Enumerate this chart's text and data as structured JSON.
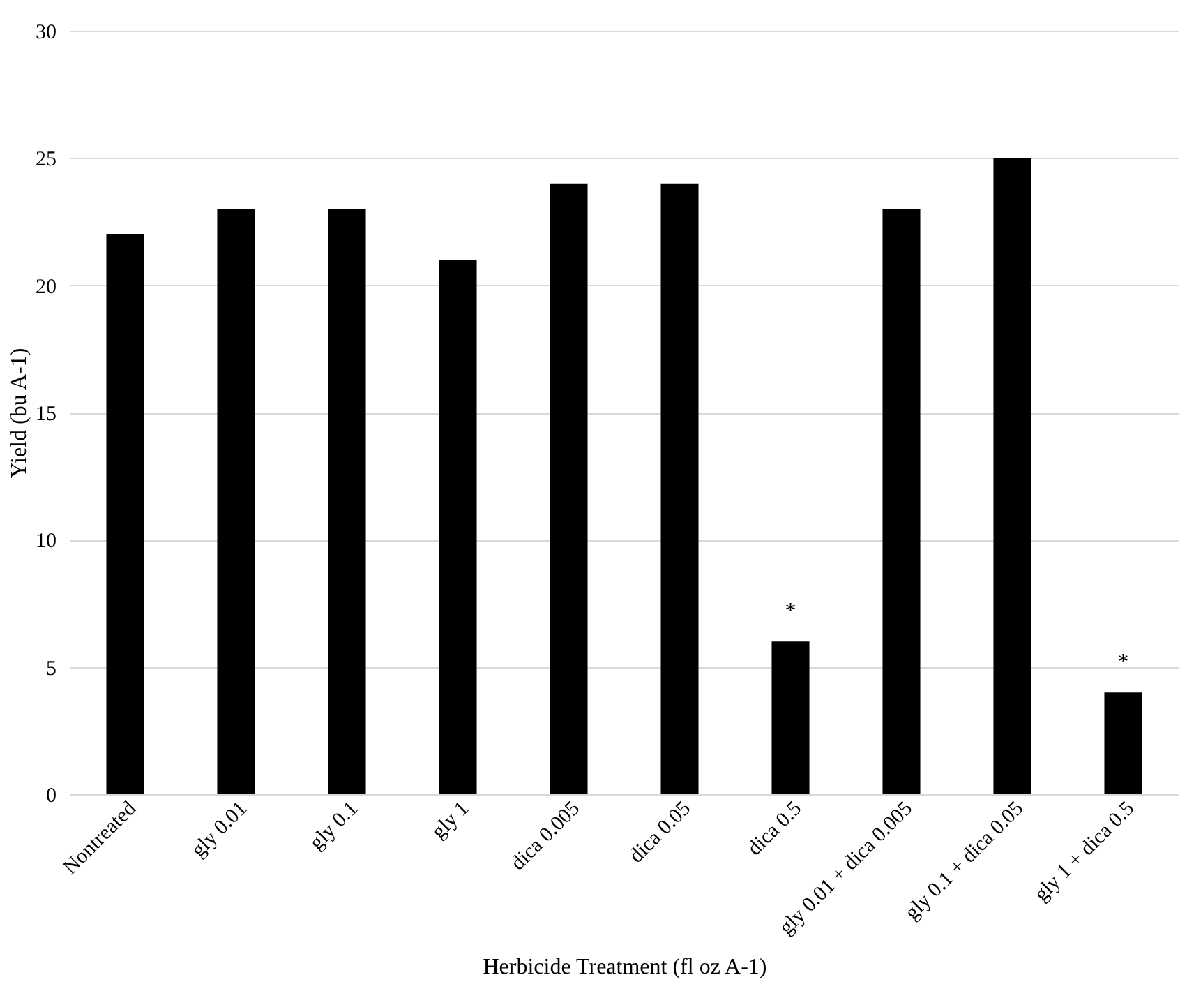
{
  "chart_data": {
    "type": "bar",
    "categories": [
      "Nontreated",
      "gly 0.01",
      "gly 0.1",
      "gly 1",
      "dica 0.005",
      "dica 0.05",
      "dica 0.5",
      "gly 0.01 + dica 0.005",
      "gly 0.1 + dica 0.05",
      "gly 1 + dica 0.5"
    ],
    "values": [
      22,
      23,
      23,
      21,
      24,
      24,
      6,
      23,
      25,
      4
    ],
    "color": "#000000",
    "xlabel": "Herbicide Treatment (fl oz A-1)",
    "ylabel": "Yield (bu A-1)",
    "ylim": [
      0,
      30
    ],
    "yticks": [
      0,
      5,
      10,
      15,
      20,
      25,
      30
    ],
    "grid": "y",
    "annotations": [
      {
        "text": "*",
        "x": "dica 0.5",
        "y": 6
      },
      {
        "text": "*",
        "x": "gly 1 + dica 0.5",
        "y": 4
      }
    ]
  }
}
